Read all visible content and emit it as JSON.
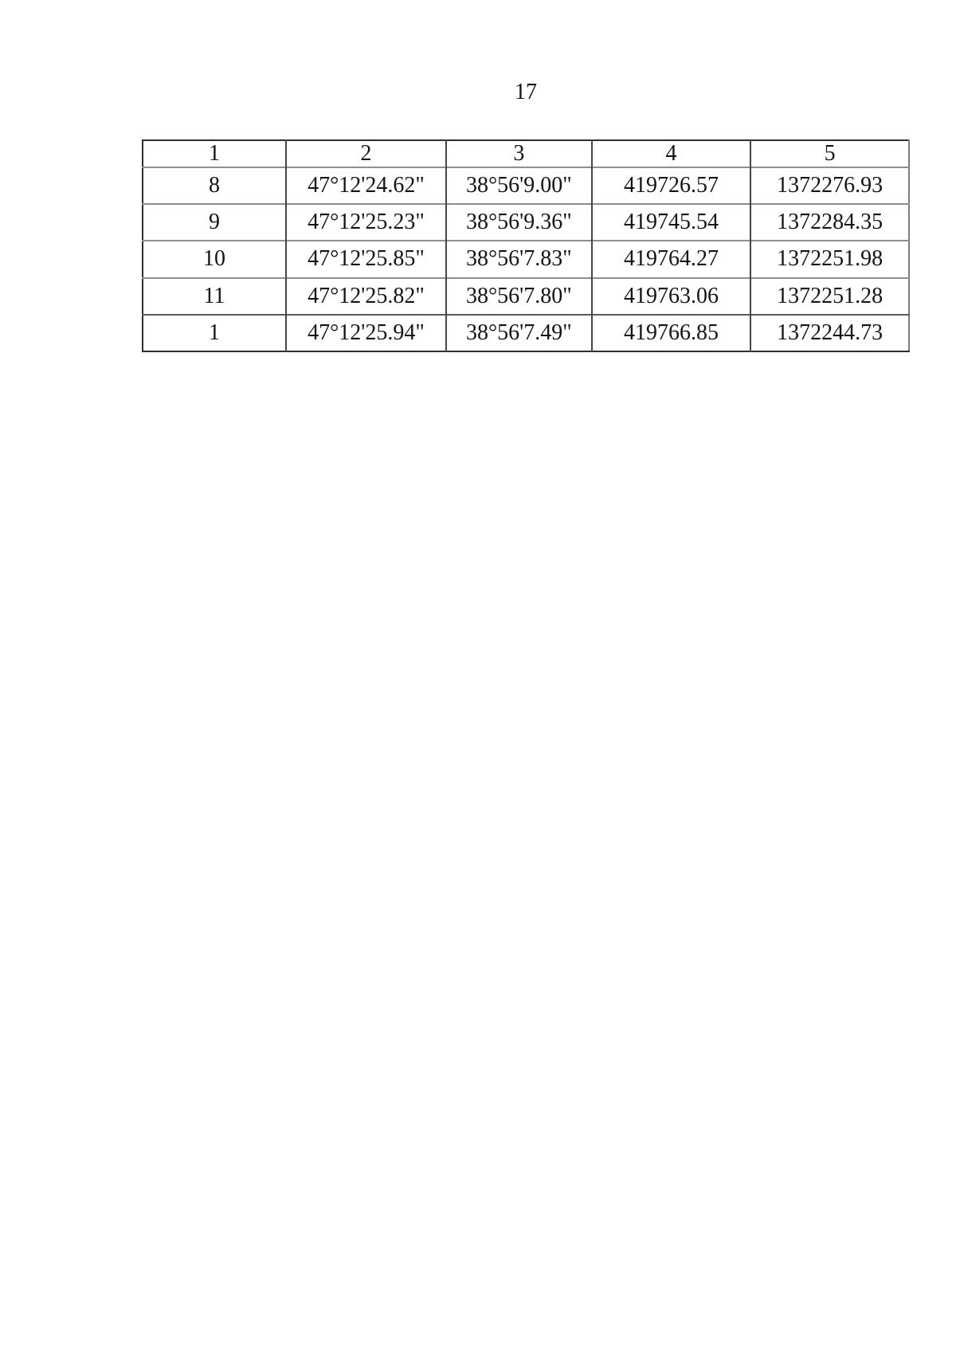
{
  "page": {
    "number": "17"
  },
  "table": {
    "headers": [
      "1",
      "2",
      "3",
      "4",
      "5"
    ],
    "rows": [
      [
        "8",
        "47°12'24.62\"",
        "38°56'9.00\"",
        "419726.57",
        "1372276.93"
      ],
      [
        "9",
        "47°12'25.23\"",
        "38°56'9.36\"",
        "419745.54",
        "1372284.35"
      ],
      [
        "10",
        "47°12'25.85\"",
        "38°56'7.83\"",
        "419764.27",
        "1372251.98"
      ],
      [
        "11",
        "47°12'25.82\"",
        "38°56'7.80\"",
        "419763.06",
        "1372251.28"
      ],
      [
        "1",
        "47°12'25.94\"",
        "38°56'7.49\"",
        "419766.85",
        "1372244.73"
      ]
    ]
  }
}
